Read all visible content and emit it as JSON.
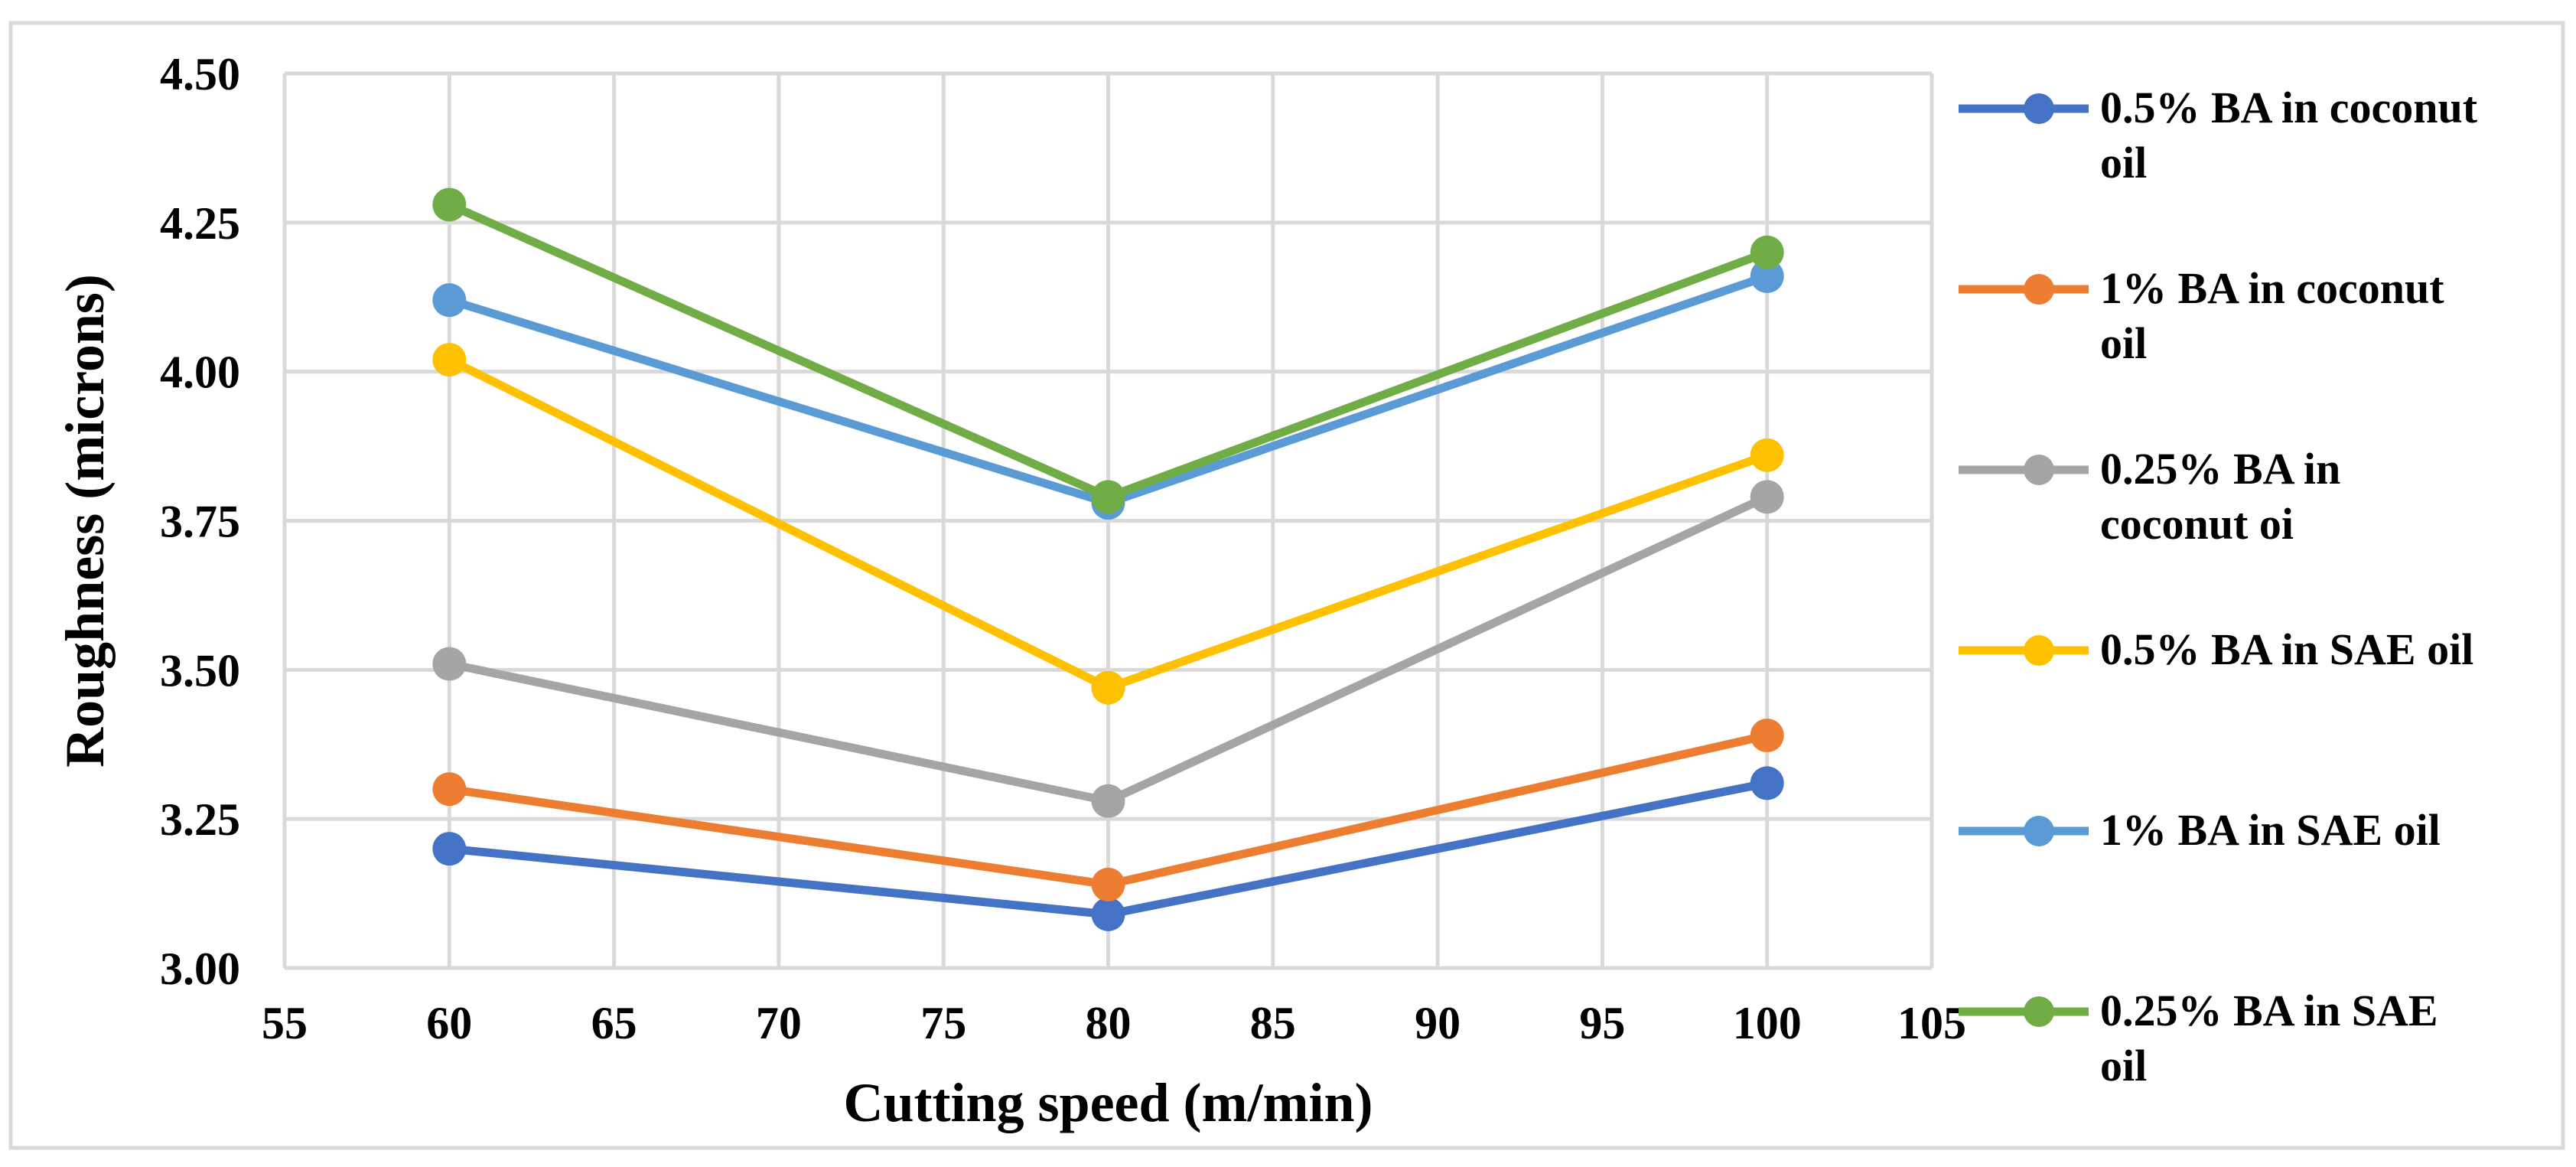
{
  "chart_data": {
    "type": "line",
    "title": "",
    "xlabel": "Cutting speed (m/min)",
    "ylabel": "Roughness (microns)",
    "xlim": [
      55,
      105
    ],
    "ylim": [
      3.0,
      4.5
    ],
    "x_ticks": [
      "55",
      "60",
      "65",
      "70",
      "75",
      "80",
      "85",
      "90",
      "95",
      "100",
      "105"
    ],
    "y_ticks": [
      "3.00",
      "3.25",
      "3.50",
      "3.75",
      "4.00",
      "4.25",
      "4.50"
    ],
    "grid": true,
    "legend_position": "right",
    "x": [
      60,
      80,
      100
    ],
    "series": [
      {
        "name": "0.5% BA in coconut oil",
        "legend_lines": [
          "0.5% BA in coconut",
          "oil"
        ],
        "color": "#4472C4",
        "values": [
          3.2,
          3.09,
          3.31
        ]
      },
      {
        "name": "1% BA in coconut oil",
        "legend_lines": [
          "1% BA in coconut",
          "oil"
        ],
        "color": "#ED7D31",
        "values": [
          3.3,
          3.14,
          3.39
        ]
      },
      {
        "name": "0.25% BA in coconut oi",
        "legend_lines": [
          "0.25% BA in",
          "coconut oi"
        ],
        "color": "#A5A5A5",
        "values": [
          3.51,
          3.28,
          3.79
        ]
      },
      {
        "name": "0.5% BA in SAE oil",
        "legend_lines": [
          "0.5% BA in SAE oil"
        ],
        "color": "#FFC000",
        "values": [
          4.02,
          3.47,
          3.86
        ]
      },
      {
        "name": "1% BA in SAE oil",
        "legend_lines": [
          "1% BA in SAE oil"
        ],
        "color": "#5B9BD5",
        "values": [
          4.12,
          3.78,
          4.16
        ]
      },
      {
        "name": "0.25% BA in SAE oil",
        "legend_lines": [
          "0.25% BA in SAE",
          "oil"
        ],
        "color": "#70AD47",
        "values": [
          4.28,
          3.79,
          4.2
        ]
      }
    ]
  }
}
